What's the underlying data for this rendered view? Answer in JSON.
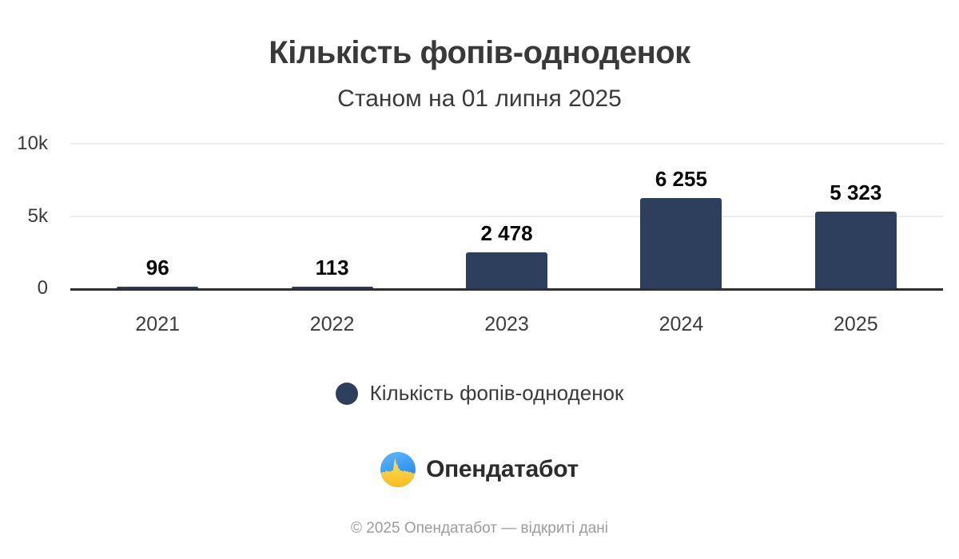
{
  "header": {
    "title": "Кількість фопів-одноденок",
    "subtitle": "Станом на 01 липня 2025"
  },
  "chart_data": {
    "type": "bar",
    "title": "Кількість фопів-одноденок",
    "subtitle": "Станом на 01 липня 2025",
    "categories": [
      "2021",
      "2022",
      "2023",
      "2024",
      "2025"
    ],
    "values": [
      96,
      113,
      2478,
      6255,
      5323
    ],
    "values_display": [
      "96",
      "113",
      "2 478",
      "6 255",
      "5 323"
    ],
    "series_name": "Кількість фопів-одноденок",
    "ylim": [
      0,
      10000
    ],
    "yticks": [
      {
        "value": 0,
        "label": "0"
      },
      {
        "value": 5000,
        "label": "5k"
      },
      {
        "value": 10000,
        "label": "10k"
      }
    ],
    "bar_color": "#2e3f5e",
    "grid": "horizontal",
    "legend_position": "bottom"
  },
  "legend": {
    "label": "Кількість фопів-одноденок",
    "marker_color": "#2e3f5e"
  },
  "brand": {
    "name": "Опендатабот",
    "icon": "opendatabot-pulse-circle-icon",
    "icon_colors": {
      "blue": "#2f9bf2",
      "yellow": "#ffd02e"
    }
  },
  "footer": {
    "text": "© 2025 Опендатабот — відкриті дані"
  }
}
